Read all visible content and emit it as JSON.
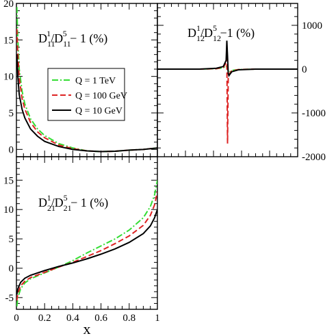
{
  "chart_data": [
    {
      "type": "line",
      "panel": "top-left",
      "label_main": "D",
      "label_sub1": "11",
      "label_sup1": "1",
      "label_mid": "/D",
      "label_sub2": "11",
      "label_sup2": "5",
      "label_tail": "− 1 (%)",
      "xlim": [
        0,
        1
      ],
      "ylim": [
        -1,
        20
      ],
      "yticks": [
        "0",
        "5",
        "10",
        "15",
        "20"
      ],
      "ytick_values": [
        0,
        5,
        10,
        15,
        20
      ],
      "legend": {
        "placement": "upper-middle",
        "entries": [
          "Q = 1 TeV",
          "Q = 100 GeV",
          "Q = 10 GeV"
        ]
      },
      "series": [
        {
          "name": "Q = 1 TeV",
          "color": "#33dd33",
          "dash": "dashdot",
          "x": [
            0.003,
            0.01,
            0.02,
            0.04,
            0.06,
            0.1,
            0.15,
            0.2,
            0.3,
            0.4,
            0.5,
            0.6,
            0.7,
            0.8,
            0.9,
            1.0
          ],
          "y": [
            19.5,
            15.0,
            11.0,
            8.0,
            6.2,
            4.2,
            2.8,
            1.9,
            0.8,
            0.2,
            -0.2,
            -0.3,
            -0.25,
            -0.1,
            0.0,
            0.2
          ]
        },
        {
          "name": "Q = 100 GeV",
          "color": "#dd2222",
          "dash": "dashed",
          "x": [
            0.003,
            0.01,
            0.02,
            0.04,
            0.06,
            0.1,
            0.15,
            0.2,
            0.3,
            0.4,
            0.5,
            0.6,
            0.7,
            0.8,
            0.9,
            1.0
          ],
          "y": [
            16.5,
            13.0,
            9.8,
            7.0,
            5.5,
            3.7,
            2.4,
            1.6,
            0.6,
            0.1,
            -0.2,
            -0.3,
            -0.25,
            -0.1,
            0.0,
            0.2
          ]
        },
        {
          "name": "Q = 10 GeV",
          "color": "#000000",
          "dash": "solid",
          "x": [
            0.003,
            0.01,
            0.02,
            0.04,
            0.06,
            0.1,
            0.15,
            0.2,
            0.3,
            0.4,
            0.5,
            0.6,
            0.7,
            0.8,
            0.9,
            1.0
          ],
          "y": [
            13.0,
            10.0,
            7.5,
            5.5,
            4.3,
            2.8,
            1.8,
            1.1,
            0.4,
            0.0,
            -0.2,
            -0.3,
            -0.25,
            -0.1,
            0.0,
            0.2
          ]
        }
      ]
    },
    {
      "type": "line",
      "panel": "top-right",
      "label_main": "D",
      "label_sub1": "12",
      "label_sup1": "1",
      "label_mid": "/D",
      "label_sub2": "12",
      "label_sup2": "5",
      "label_tail": "−1 (%)",
      "xlim": [
        0,
        1
      ],
      "ylim": [
        -2000,
        1500
      ],
      "yticks": [
        "1000",
        "0",
        "-1000",
        "-2000"
      ],
      "ytick_values": [
        1000,
        0,
        -1000,
        -2000
      ],
      "series": [
        {
          "name": "Q = 1 TeV",
          "color": "#33dd33",
          "dash": "dashdot",
          "x": [
            0.0,
            0.3,
            0.42,
            0.47,
            0.49,
            0.5,
            0.51,
            0.53,
            0.58,
            0.7,
            1.0
          ],
          "y": [
            0,
            0,
            10,
            30,
            80,
            0,
            -80,
            -30,
            -10,
            0,
            0
          ]
        },
        {
          "name": "Q = 100 GeV",
          "color": "#dd2222",
          "dash": "dashed",
          "x": [
            0.0,
            0.3,
            0.42,
            0.47,
            0.49,
            0.495,
            0.5,
            0.505,
            0.51,
            0.53,
            0.58,
            0.7,
            1.0
          ],
          "y": [
            0,
            0,
            10,
            40,
            150,
            250,
            -1700,
            -200,
            -120,
            -40,
            -10,
            0,
            0
          ]
        },
        {
          "name": "Q = 10 GeV",
          "color": "#000000",
          "dash": "solid",
          "x": [
            0.0,
            0.3,
            0.42,
            0.47,
            0.49,
            0.495,
            0.5,
            0.505,
            0.51,
            0.53,
            0.58,
            0.7,
            1.0
          ],
          "y": [
            0,
            0,
            20,
            60,
            200,
            650,
            300,
            -100,
            -150,
            -60,
            -15,
            0,
            0
          ]
        }
      ]
    },
    {
      "type": "line",
      "panel": "bottom-left",
      "label_main": "D",
      "label_sub1": "21",
      "label_sup1": "1",
      "label_mid": "/D",
      "label_sub2": "21",
      "label_sup2": "5",
      "label_tail": "− 1 (%)",
      "xlabel": "x",
      "xlim": [
        0,
        1
      ],
      "ylim": [
        -7,
        19
      ],
      "xticks": [
        "0",
        "0.2",
        "0.4",
        "0.6",
        "0.8",
        "1"
      ],
      "xtick_values": [
        0,
        0.2,
        0.4,
        0.6,
        0.8,
        1.0
      ],
      "yticks": [
        "-5",
        "0",
        "5",
        "10",
        "15"
      ],
      "ytick_values": [
        -5,
        0,
        5,
        10,
        15
      ],
      "series": [
        {
          "name": "Q = 1 TeV",
          "color": "#33dd33",
          "dash": "dashdot",
          "x": [
            0.003,
            0.01,
            0.03,
            0.06,
            0.1,
            0.2,
            0.3,
            0.4,
            0.5,
            0.6,
            0.7,
            0.8,
            0.9,
            0.95,
            0.98,
            1.0
          ],
          "y": [
            -6.5,
            -5.0,
            -3.5,
            -2.5,
            -1.8,
            -0.8,
            0.2,
            1.3,
            2.6,
            3.8,
            5.0,
            6.5,
            8.6,
            10.5,
            12.5,
            15.0
          ]
        },
        {
          "name": "Q = 100 GeV",
          "color": "#dd2222",
          "dash": "dashed",
          "x": [
            0.003,
            0.01,
            0.03,
            0.06,
            0.1,
            0.2,
            0.3,
            0.4,
            0.5,
            0.6,
            0.7,
            0.8,
            0.9,
            0.95,
            0.98,
            1.0
          ],
          "y": [
            -5.5,
            -4.3,
            -3.0,
            -2.2,
            -1.6,
            -0.7,
            0.2,
            1.0,
            2.0,
            3.0,
            4.2,
            5.5,
            7.3,
            9.0,
            10.8,
            13.0
          ]
        },
        {
          "name": "Q = 10 GeV",
          "color": "#000000",
          "dash": "solid",
          "x": [
            0.003,
            0.01,
            0.03,
            0.06,
            0.1,
            0.2,
            0.3,
            0.4,
            0.5,
            0.6,
            0.7,
            0.8,
            0.9,
            0.95,
            0.98,
            1.0
          ],
          "y": [
            -4.5,
            -3.5,
            -2.4,
            -1.7,
            -1.2,
            -0.4,
            0.3,
            0.9,
            1.6,
            2.4,
            3.3,
            4.4,
            5.9,
            7.2,
            8.6,
            10.0
          ]
        }
      ]
    }
  ]
}
